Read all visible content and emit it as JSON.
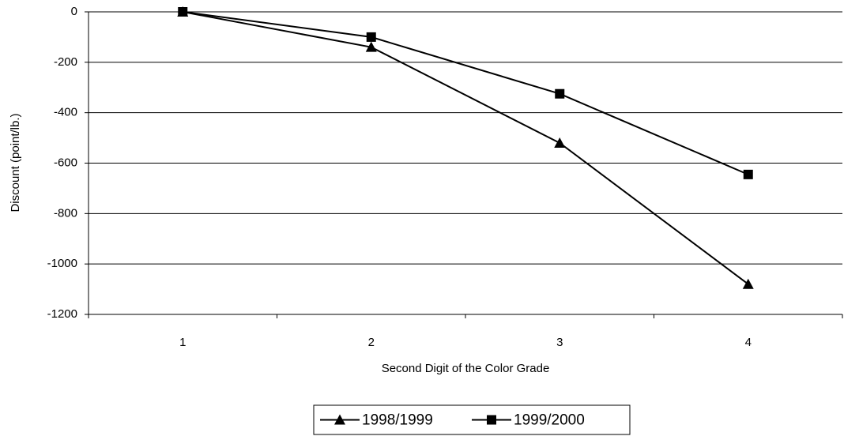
{
  "chart_data": {
    "type": "line",
    "x_label": "Second Digit of the Color Grade",
    "y_label": "Discount (point/lb.)",
    "categories": [
      "1",
      "2",
      "3",
      "4"
    ],
    "series": [
      {
        "name": "1998/1999",
        "color": "#000000",
        "marker": "triangle",
        "values": [
          0,
          -140,
          -520,
          -1080
        ]
      },
      {
        "name": "1999/2000",
        "color": "#000000",
        "marker": "square",
        "values": [
          0,
          -100,
          -325,
          -645
        ]
      }
    ],
    "ylim": [
      -1200,
      0
    ],
    "yticks": [
      -1200,
      -1000,
      -800,
      -600,
      -400,
      -200,
      0
    ],
    "grid": true,
    "legend": "bottom"
  }
}
